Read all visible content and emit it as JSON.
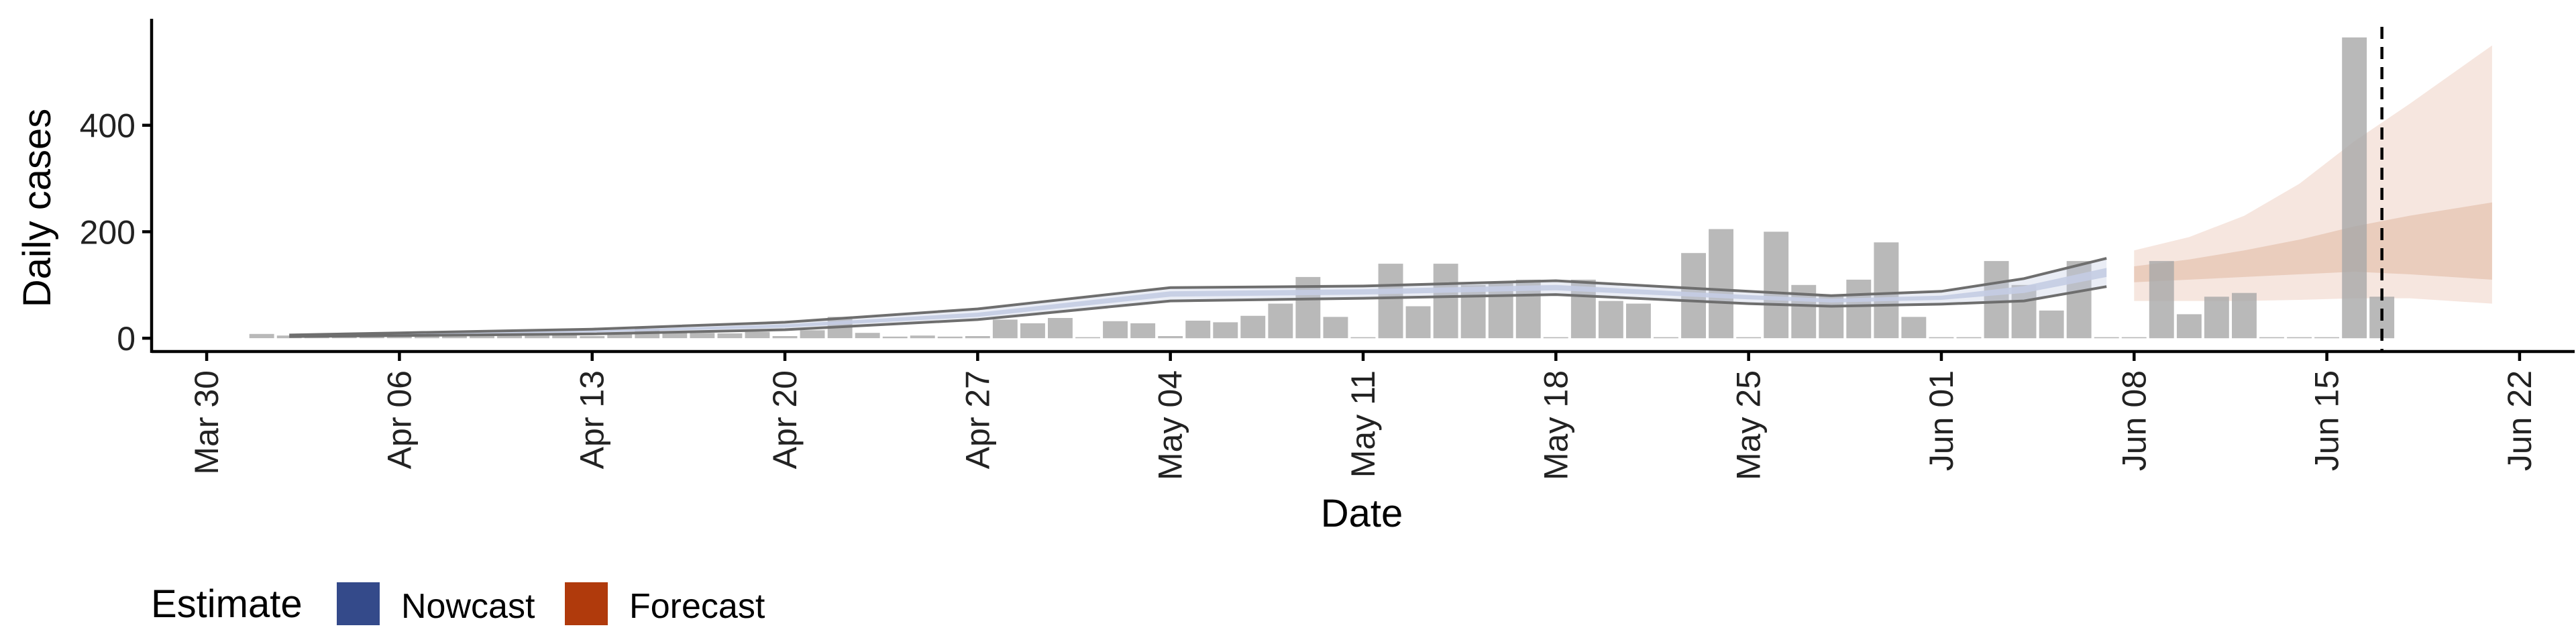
{
  "chart_data": {
    "type": "bar",
    "title": "",
    "xlabel": "Date",
    "ylabel": "Daily cases",
    "x_date_range": [
      "2020-03-28",
      "2020-06-24"
    ],
    "ylim": [
      -25,
      600
    ],
    "x_ticks": [
      {
        "date": "2020-03-30",
        "label": "Mar 30"
      },
      {
        "date": "2020-04-06",
        "label": "Apr 06"
      },
      {
        "date": "2020-04-13",
        "label": "Apr 13"
      },
      {
        "date": "2020-04-20",
        "label": "Apr 20"
      },
      {
        "date": "2020-04-27",
        "label": "Apr 27"
      },
      {
        "date": "2020-05-04",
        "label": "May 04"
      },
      {
        "date": "2020-05-11",
        "label": "May 11"
      },
      {
        "date": "2020-05-18",
        "label": "May 18"
      },
      {
        "date": "2020-05-25",
        "label": "May 25"
      },
      {
        "date": "2020-06-01",
        "label": "Jun 01"
      },
      {
        "date": "2020-06-08",
        "label": "Jun 08"
      },
      {
        "date": "2020-06-15",
        "label": "Jun 15"
      },
      {
        "date": "2020-06-22",
        "label": "Jun 22"
      }
    ],
    "y_ticks": [
      0,
      200,
      400
    ],
    "grid": false,
    "reference_line": {
      "date": "2020-06-17",
      "style": "dashed"
    },
    "bars": [
      {
        "date": "2020-04-01",
        "value": 8
      },
      {
        "date": "2020-04-02",
        "value": 5
      },
      {
        "date": "2020-04-03",
        "value": 3
      },
      {
        "date": "2020-04-04",
        "value": 4
      },
      {
        "date": "2020-04-05",
        "value": 3
      },
      {
        "date": "2020-04-06",
        "value": 5
      },
      {
        "date": "2020-04-07",
        "value": 4
      },
      {
        "date": "2020-04-08",
        "value": 6
      },
      {
        "date": "2020-04-09",
        "value": 5
      },
      {
        "date": "2020-04-10",
        "value": 7
      },
      {
        "date": "2020-04-11",
        "value": 5
      },
      {
        "date": "2020-04-12",
        "value": 6
      },
      {
        "date": "2020-04-13",
        "value": 4
      },
      {
        "date": "2020-04-14",
        "value": 8
      },
      {
        "date": "2020-04-15",
        "value": 18
      },
      {
        "date": "2020-04-16",
        "value": 12
      },
      {
        "date": "2020-04-17",
        "value": 10
      },
      {
        "date": "2020-04-18",
        "value": 9
      },
      {
        "date": "2020-04-19",
        "value": 12
      },
      {
        "date": "2020-04-20",
        "value": 4
      },
      {
        "date": "2020-04-21",
        "value": 15
      },
      {
        "date": "2020-04-22",
        "value": 40
      },
      {
        "date": "2020-04-23",
        "value": 10
      },
      {
        "date": "2020-04-24",
        "value": 3
      },
      {
        "date": "2020-04-25",
        "value": 5
      },
      {
        "date": "2020-04-26",
        "value": 3
      },
      {
        "date": "2020-04-27",
        "value": 4
      },
      {
        "date": "2020-04-28",
        "value": 35
      },
      {
        "date": "2020-04-29",
        "value": 28
      },
      {
        "date": "2020-04-30",
        "value": 38
      },
      {
        "date": "2020-05-01",
        "value": 2
      },
      {
        "date": "2020-05-02",
        "value": 32
      },
      {
        "date": "2020-05-03",
        "value": 28
      },
      {
        "date": "2020-05-04",
        "value": 4
      },
      {
        "date": "2020-05-05",
        "value": 33
      },
      {
        "date": "2020-05-06",
        "value": 30
      },
      {
        "date": "2020-05-07",
        "value": 42
      },
      {
        "date": "2020-05-08",
        "value": 65
      },
      {
        "date": "2020-05-09",
        "value": 115
      },
      {
        "date": "2020-05-10",
        "value": 40
      },
      {
        "date": "2020-05-11",
        "value": 2
      },
      {
        "date": "2020-05-12",
        "value": 140
      },
      {
        "date": "2020-05-13",
        "value": 60
      },
      {
        "date": "2020-05-14",
        "value": 140
      },
      {
        "date": "2020-05-15",
        "value": 100
      },
      {
        "date": "2020-05-16",
        "value": 105
      },
      {
        "date": "2020-05-17",
        "value": 110
      },
      {
        "date": "2020-05-18",
        "value": 2
      },
      {
        "date": "2020-05-19",
        "value": 110
      },
      {
        "date": "2020-05-20",
        "value": 70
      },
      {
        "date": "2020-05-21",
        "value": 65
      },
      {
        "date": "2020-05-22",
        "value": 2
      },
      {
        "date": "2020-05-23",
        "value": 160
      },
      {
        "date": "2020-05-24",
        "value": 205
      },
      {
        "date": "2020-05-25",
        "value": 2
      },
      {
        "date": "2020-05-26",
        "value": 200
      },
      {
        "date": "2020-05-27",
        "value": 100
      },
      {
        "date": "2020-05-28",
        "value": 80
      },
      {
        "date": "2020-05-29",
        "value": 110
      },
      {
        "date": "2020-05-30",
        "value": 180
      },
      {
        "date": "2020-05-31",
        "value": 40
      },
      {
        "date": "2020-06-01",
        "value": 2
      },
      {
        "date": "2020-06-02",
        "value": 2
      },
      {
        "date": "2020-06-03",
        "value": 145
      },
      {
        "date": "2020-06-04",
        "value": 100
      },
      {
        "date": "2020-06-05",
        "value": 52
      },
      {
        "date": "2020-06-06",
        "value": 145
      },
      {
        "date": "2020-06-07",
        "value": 2
      },
      {
        "date": "2020-06-08",
        "value": 2
      },
      {
        "date": "2020-06-09",
        "value": 145
      },
      {
        "date": "2020-06-10",
        "value": 45
      },
      {
        "date": "2020-06-11",
        "value": 78
      },
      {
        "date": "2020-06-12",
        "value": 85
      },
      {
        "date": "2020-06-13",
        "value": 2
      },
      {
        "date": "2020-06-14",
        "value": 2
      },
      {
        "date": "2020-06-15",
        "value": 2
      },
      {
        "date": "2020-06-16",
        "value": 565
      },
      {
        "date": "2020-06-17",
        "value": 78
      }
    ],
    "series": [
      {
        "type": "Nowcast",
        "outline": [
          {
            "date": "2020-04-02",
            "low": 3,
            "high": 6
          },
          {
            "date": "2020-04-06",
            "low": 5,
            "high": 10
          },
          {
            "date": "2020-04-13",
            "low": 8,
            "high": 17
          },
          {
            "date": "2020-04-20",
            "low": 16,
            "high": 30
          },
          {
            "date": "2020-04-27",
            "low": 35,
            "high": 55
          },
          {
            "date": "2020-05-04",
            "low": 70,
            "high": 95
          },
          {
            "date": "2020-05-11",
            "low": 75,
            "high": 98
          },
          {
            "date": "2020-05-18",
            "low": 82,
            "high": 108
          },
          {
            "date": "2020-05-25",
            "low": 65,
            "high": 88
          },
          {
            "date": "2020-05-28",
            "low": 60,
            "high": 80
          },
          {
            "date": "2020-06-01",
            "low": 64,
            "high": 88
          },
          {
            "date": "2020-06-04",
            "low": 70,
            "high": 112
          },
          {
            "date": "2020-06-07",
            "low": 97,
            "high": 150
          }
        ],
        "band": [
          {
            "date": "2020-04-02",
            "low": 4,
            "high": 6
          },
          {
            "date": "2020-04-06",
            "low": 7,
            "high": 9
          },
          {
            "date": "2020-04-13",
            "low": 11,
            "high": 14
          },
          {
            "date": "2020-04-20",
            "low": 20,
            "high": 26
          },
          {
            "date": "2020-04-27",
            "low": 40,
            "high": 48
          },
          {
            "date": "2020-05-04",
            "low": 78,
            "high": 88
          },
          {
            "date": "2020-05-11",
            "low": 82,
            "high": 92
          },
          {
            "date": "2020-05-18",
            "low": 90,
            "high": 100
          },
          {
            "date": "2020-05-25",
            "low": 73,
            "high": 81
          },
          {
            "date": "2020-05-28",
            "low": 67,
            "high": 74
          },
          {
            "date": "2020-06-01",
            "low": 72,
            "high": 80
          },
          {
            "date": "2020-06-04",
            "low": 85,
            "high": 98
          },
          {
            "date": "2020-06-07",
            "low": 115,
            "high": 132
          }
        ]
      },
      {
        "type": "Forecast",
        "outer": [
          {
            "date": "2020-06-08",
            "low": 70,
            "high": 165
          },
          {
            "date": "2020-06-10",
            "low": 70,
            "high": 190
          },
          {
            "date": "2020-06-12",
            "low": 70,
            "high": 230
          },
          {
            "date": "2020-06-14",
            "low": 72,
            "high": 290
          },
          {
            "date": "2020-06-16",
            "low": 75,
            "high": 370
          },
          {
            "date": "2020-06-18",
            "low": 75,
            "high": 440
          },
          {
            "date": "2020-06-21",
            "low": 65,
            "high": 550
          }
        ],
        "inner": [
          {
            "date": "2020-06-08",
            "low": 105,
            "high": 135
          },
          {
            "date": "2020-06-10",
            "low": 110,
            "high": 148
          },
          {
            "date": "2020-06-12",
            "low": 115,
            "high": 165
          },
          {
            "date": "2020-06-14",
            "low": 120,
            "high": 185
          },
          {
            "date": "2020-06-16",
            "low": 125,
            "high": 210
          },
          {
            "date": "2020-06-18",
            "low": 120,
            "high": 230
          },
          {
            "date": "2020-06-21",
            "low": 110,
            "high": 255
          }
        ]
      }
    ],
    "legend": {
      "title": "Estimate",
      "position": "bottom-left",
      "entries": [
        {
          "label": "Nowcast",
          "color": "#344a8a"
        },
        {
          "label": "Forecast",
          "color": "#b03a0c"
        }
      ]
    },
    "colors": {
      "bar": "#a8a8a8",
      "nowcast_band": "#c4cce3",
      "nowcast_line": "#6e6e6e",
      "forecast_outer": "#f4e2d9",
      "forecast_inner": "#e8c8b7",
      "reference_line": "#000000"
    }
  }
}
